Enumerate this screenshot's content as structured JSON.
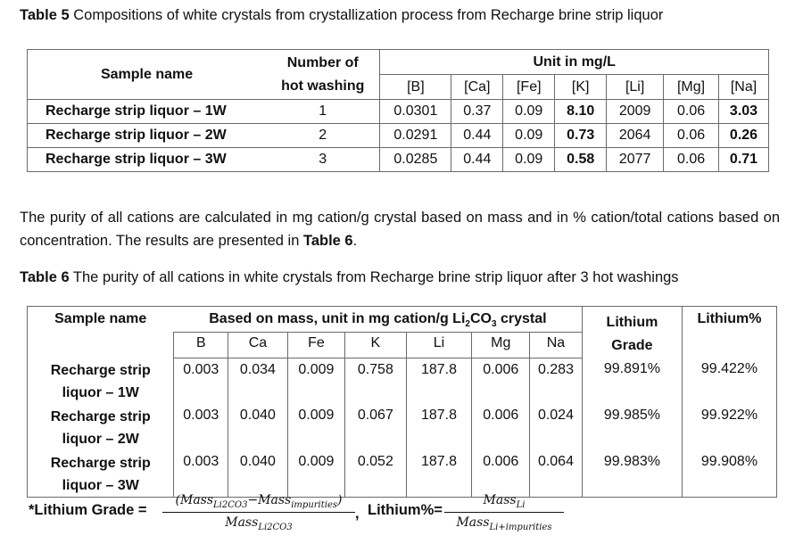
{
  "table5": {
    "caption_label": "Table 5",
    "caption_text": " Compositions of white crystals from crystallization process from Recharge brine strip liquor",
    "header_sample": "Sample name",
    "header_number": "Number of",
    "header_number2": "hot washing",
    "header_unit": "Unit in mg/L",
    "columns": [
      "[B]",
      "[Ca]",
      "[Fe]",
      "[K]",
      "[Li]",
      "[Mg]",
      "[Na]"
    ],
    "rows": [
      {
        "name": "Recharge strip liquor – 1W",
        "washing": "1",
        "values": [
          "0.0301",
          "0.37",
          "0.09",
          "8.10",
          "2009",
          "0.06",
          "3.03"
        ]
      },
      {
        "name": "Recharge strip liquor – 2W",
        "washing": "2",
        "values": [
          "0.0291",
          "0.44",
          "0.09",
          "0.73",
          "2064",
          "0.06",
          "0.26"
        ]
      },
      {
        "name": "Recharge strip liquor – 3W",
        "washing": "3",
        "values": [
          "0.0285",
          "0.44",
          "0.09",
          "0.58",
          "2077",
          "0.06",
          "0.71"
        ]
      }
    ]
  },
  "paragraph": {
    "text_before": "The purity of all cations are calculated in mg cation/g crystal based on mass and in % cation/total cations based on concentration. The results are presented in ",
    "ref": "Table 6",
    "text_after": "."
  },
  "table6": {
    "caption_label": "Table 6",
    "caption_text": " The purity of all cations in white crystals from Recharge brine strip liquor after 3 hot washings",
    "header_sample": "Sample name",
    "header_mass_a": "Based on mass, unit in mg cation/g Li",
    "header_mass_sub": "2",
    "header_mass_b": "CO",
    "header_mass_sub2": "3",
    "header_mass_c": " crystal",
    "header_grade": "Lithium",
    "header_grade2": "Grade",
    "header_pct": "Lithium%",
    "columns": [
      "B",
      "Ca",
      "Fe",
      "K",
      "Li",
      "Mg",
      "Na"
    ],
    "rows": [
      {
        "name1": "Recharge strip",
        "name2": "liquor – 1W",
        "values": [
          "0.003",
          "0.034",
          "0.009",
          "0.758",
          "187.8",
          "0.006",
          "0.283"
        ],
        "grade": "99.891%",
        "pct": "99.422%"
      },
      {
        "name1": "Recharge strip",
        "name2": "liquor – 2W",
        "values": [
          "0.003",
          "0.040",
          "0.009",
          "0.067",
          "187.8",
          "0.006",
          "0.024"
        ],
        "grade": "99.985%",
        "pct": "99.922%"
      },
      {
        "name1": "Recharge strip",
        "name2": "liquor – 3W",
        "values": [
          "0.003",
          "0.040",
          "0.009",
          "0.052",
          "187.8",
          "0.006",
          "0.064"
        ],
        "grade": "99.983%",
        "pct": "99.908%"
      }
    ]
  },
  "formula": {
    "grade_label": "*Lithium Grade =",
    "grade_num_a": "(Mass",
    "grade_num_sub1": "Li2CO3",
    "grade_num_b": "−Mass",
    "grade_num_sub2": "impurities",
    "grade_num_c": ")",
    "grade_den_a": "Mass",
    "grade_den_sub": "Li2CO3",
    "comma": ",",
    "pct_label": "Lithium%=",
    "pct_num_a": "Mass",
    "pct_num_sub": "Li",
    "pct_den_a": "Mass",
    "pct_den_sub": "Li+impurities"
  }
}
